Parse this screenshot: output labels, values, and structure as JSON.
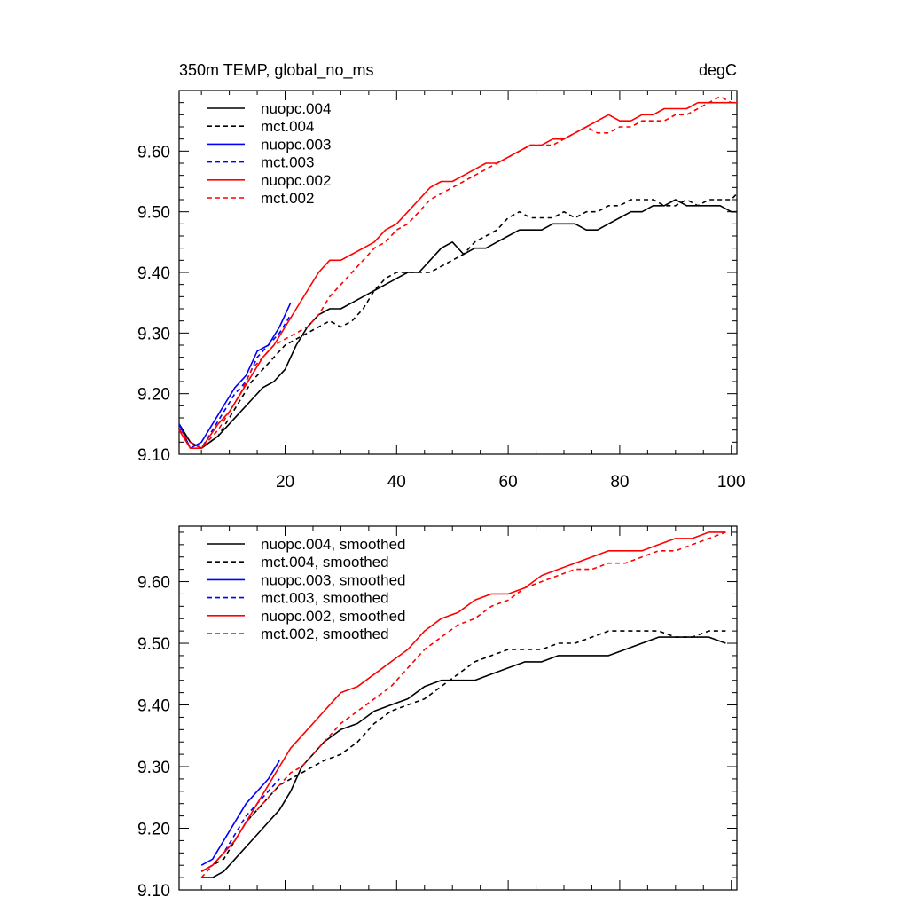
{
  "chart_data": [
    {
      "type": "line",
      "title_left": "350m TEMP, global_no_ms",
      "title_right": "degC",
      "xlim": [
        1,
        101
      ],
      "ylim": [
        9.1,
        9.7
      ],
      "xticks": [
        20,
        40,
        60,
        80,
        100
      ],
      "xtick_labels": [
        "20",
        "40",
        "60",
        "80",
        "100"
      ],
      "yticks": [
        9.1,
        9.2,
        9.3,
        9.4,
        9.5,
        9.6
      ],
      "ytick_labels": [
        "9.10",
        "9.20",
        "9.30",
        "9.40",
        "9.50",
        "9.60"
      ],
      "legend_position": "top-left",
      "series": [
        {
          "name": "nuopc.004",
          "color": "#000000",
          "dash": "solid",
          "x": [
            1,
            3,
            5,
            8,
            10,
            12,
            14,
            16,
            18,
            20,
            22,
            24,
            26,
            28,
            30,
            32,
            34,
            36,
            38,
            40,
            42,
            44,
            46,
            48,
            50,
            52,
            54,
            56,
            58,
            60,
            62,
            64,
            66,
            68,
            70,
            72,
            74,
            76,
            78,
            80,
            82,
            84,
            86,
            88,
            90,
            92,
            94,
            96,
            98,
            100,
            101
          ],
          "y": [
            9.15,
            9.12,
            9.11,
            9.13,
            9.15,
            9.17,
            9.19,
            9.21,
            9.22,
            9.24,
            9.28,
            9.31,
            9.33,
            9.34,
            9.34,
            9.35,
            9.36,
            9.37,
            9.38,
            9.39,
            9.4,
            9.4,
            9.42,
            9.44,
            9.45,
            9.43,
            9.44,
            9.44,
            9.45,
            9.46,
            9.47,
            9.47,
            9.47,
            9.48,
            9.48,
            9.48,
            9.47,
            9.47,
            9.48,
            9.49,
            9.5,
            9.5,
            9.51,
            9.51,
            9.52,
            9.51,
            9.51,
            9.51,
            9.51,
            9.5,
            9.5
          ]
        },
        {
          "name": "mct.004",
          "color": "#000000",
          "dash": "dashed",
          "x": [
            1,
            3,
            5,
            8,
            10,
            12,
            14,
            16,
            18,
            20,
            22,
            24,
            26,
            28,
            30,
            32,
            34,
            36,
            38,
            40,
            42,
            44,
            46,
            48,
            50,
            52,
            54,
            56,
            58,
            60,
            62,
            64,
            66,
            68,
            70,
            72,
            74,
            76,
            78,
            80,
            82,
            84,
            86,
            88,
            90,
            92,
            94,
            96,
            98,
            100,
            101
          ],
          "y": [
            9.14,
            9.12,
            9.11,
            9.13,
            9.16,
            9.19,
            9.22,
            9.24,
            9.26,
            9.28,
            9.29,
            9.3,
            9.31,
            9.32,
            9.31,
            9.32,
            9.34,
            9.37,
            9.39,
            9.4,
            9.4,
            9.4,
            9.4,
            9.41,
            9.42,
            9.43,
            9.45,
            9.46,
            9.47,
            9.49,
            9.5,
            9.49,
            9.49,
            9.49,
            9.5,
            9.49,
            9.5,
            9.5,
            9.51,
            9.51,
            9.52,
            9.52,
            9.52,
            9.51,
            9.51,
            9.52,
            9.51,
            9.52,
            9.52,
            9.52,
            9.53
          ]
        },
        {
          "name": "nuopc.003",
          "color": "#0000ff",
          "dash": "solid",
          "x": [
            1,
            3,
            5,
            7,
            9,
            11,
            13,
            15,
            17,
            19,
            21
          ],
          "y": [
            9.15,
            9.11,
            9.12,
            9.15,
            9.18,
            9.21,
            9.23,
            9.27,
            9.28,
            9.31,
            9.35
          ]
        },
        {
          "name": "mct.003",
          "color": "#0000ff",
          "dash": "dashed",
          "x": [
            1,
            3,
            5,
            7,
            9,
            11,
            13,
            15,
            17,
            19,
            21
          ],
          "y": [
            9.14,
            9.12,
            9.11,
            9.14,
            9.17,
            9.2,
            9.22,
            9.26,
            9.28,
            9.3,
            9.33
          ]
        },
        {
          "name": "nuopc.002",
          "color": "#ff0000",
          "dash": "solid",
          "x": [
            1,
            3,
            5,
            8,
            10,
            12,
            14,
            16,
            18,
            20,
            22,
            24,
            26,
            28,
            30,
            32,
            34,
            36,
            38,
            40,
            42,
            44,
            46,
            48,
            50,
            52,
            54,
            56,
            58,
            60,
            62,
            64,
            66,
            68,
            70,
            72,
            74,
            76,
            78,
            80,
            82,
            84,
            86,
            88,
            90,
            92,
            94,
            96,
            98,
            100,
            101
          ],
          "y": [
            9.14,
            9.11,
            9.11,
            9.15,
            9.17,
            9.2,
            9.23,
            9.26,
            9.28,
            9.31,
            9.34,
            9.37,
            9.4,
            9.42,
            9.42,
            9.43,
            9.44,
            9.45,
            9.47,
            9.48,
            9.5,
            9.52,
            9.54,
            9.55,
            9.55,
            9.56,
            9.57,
            9.58,
            9.58,
            9.59,
            9.6,
            9.61,
            9.61,
            9.62,
            9.62,
            9.63,
            9.64,
            9.65,
            9.66,
            9.65,
            9.65,
            9.66,
            9.66,
            9.67,
            9.67,
            9.67,
            9.68,
            9.68,
            9.68,
            9.68,
            9.68
          ]
        },
        {
          "name": "mct.002",
          "color": "#ff0000",
          "dash": "dashed",
          "x": [
            1,
            3,
            5,
            8,
            10,
            12,
            14,
            16,
            18,
            20,
            22,
            24,
            26,
            28,
            30,
            32,
            34,
            36,
            38,
            40,
            42,
            44,
            46,
            48,
            50,
            52,
            54,
            56,
            58,
            60,
            62,
            64,
            66,
            68,
            70,
            72,
            74,
            76,
            78,
            80,
            82,
            84,
            86,
            88,
            90,
            92,
            94,
            96,
            98,
            100,
            101
          ],
          "y": [
            9.14,
            9.12,
            9.11,
            9.14,
            9.17,
            9.2,
            9.24,
            9.26,
            9.28,
            9.29,
            9.3,
            9.31,
            9.33,
            9.36,
            9.38,
            9.4,
            9.42,
            9.44,
            9.45,
            9.47,
            9.48,
            9.5,
            9.52,
            9.53,
            9.54,
            9.55,
            9.56,
            9.57,
            9.58,
            9.59,
            9.6,
            9.61,
            9.61,
            9.61,
            9.62,
            9.63,
            9.64,
            9.63,
            9.63,
            9.64,
            9.64,
            9.65,
            9.65,
            9.65,
            9.66,
            9.66,
            9.67,
            9.68,
            9.69,
            9.68,
            9.68
          ]
        }
      ]
    },
    {
      "type": "line",
      "title_left": "",
      "title_right": "",
      "xlim": [
        1,
        101
      ],
      "ylim": [
        9.1,
        9.69
      ],
      "xticks": [
        20,
        40,
        60,
        80,
        100
      ],
      "xtick_labels": [],
      "yticks": [
        9.1,
        9.2,
        9.3,
        9.4,
        9.5,
        9.6
      ],
      "ytick_labels": [
        "9.10",
        "9.20",
        "9.30",
        "9.40",
        "9.50",
        "9.60"
      ],
      "legend_position": "top-left",
      "series": [
        {
          "name": "nuopc.004, smoothed",
          "color": "#000000",
          "dash": "solid",
          "x": [
            5,
            7,
            9,
            11,
            13,
            15,
            17,
            19,
            21,
            23,
            25,
            27,
            30,
            33,
            36,
            39,
            42,
            45,
            48,
            51,
            54,
            57,
            60,
            63,
            66,
            69,
            72,
            75,
            78,
            81,
            84,
            87,
            90,
            93,
            96,
            99
          ],
          "y": [
            9.12,
            9.12,
            9.13,
            9.15,
            9.17,
            9.19,
            9.21,
            9.23,
            9.26,
            9.3,
            9.32,
            9.34,
            9.36,
            9.37,
            9.39,
            9.4,
            9.41,
            9.43,
            9.44,
            9.44,
            9.44,
            9.45,
            9.46,
            9.47,
            9.47,
            9.48,
            9.48,
            9.48,
            9.48,
            9.49,
            9.5,
            9.51,
            9.51,
            9.51,
            9.51,
            9.5
          ]
        },
        {
          "name": "mct.004, smoothed",
          "color": "#000000",
          "dash": "dashed",
          "x": [
            5,
            7,
            9,
            11,
            13,
            15,
            17,
            19,
            21,
            23,
            25,
            27,
            30,
            33,
            36,
            39,
            42,
            45,
            48,
            51,
            54,
            57,
            60,
            63,
            66,
            69,
            72,
            75,
            78,
            81,
            84,
            87,
            90,
            93,
            96,
            99
          ],
          "y": [
            9.13,
            9.14,
            9.15,
            9.18,
            9.21,
            9.23,
            9.25,
            9.27,
            9.28,
            9.29,
            9.3,
            9.31,
            9.32,
            9.34,
            9.37,
            9.39,
            9.4,
            9.41,
            9.43,
            9.45,
            9.47,
            9.48,
            9.49,
            9.49,
            9.49,
            9.5,
            9.5,
            9.51,
            9.52,
            9.52,
            9.52,
            9.52,
            9.51,
            9.51,
            9.52,
            9.52
          ]
        },
        {
          "name": "nuopc.003, smoothed",
          "color": "#0000ff",
          "dash": "solid",
          "x": [
            5,
            7,
            9,
            11,
            13,
            15,
            17,
            19
          ],
          "y": [
            9.14,
            9.15,
            9.18,
            9.21,
            9.24,
            9.26,
            9.28,
            9.31
          ]
        },
        {
          "name": "mct.003, smoothed",
          "color": "#0000ff",
          "dash": "dashed",
          "x": [
            5,
            7,
            9,
            11,
            13,
            15,
            17,
            19
          ],
          "y": [
            9.13,
            9.14,
            9.16,
            9.19,
            9.22,
            9.24,
            9.26,
            9.28
          ]
        },
        {
          "name": "nuopc.002, smoothed",
          "color": "#ff0000",
          "dash": "solid",
          "x": [
            5,
            7,
            9,
            11,
            13,
            15,
            17,
            19,
            21,
            23,
            25,
            27,
            30,
            33,
            36,
            39,
            42,
            45,
            48,
            51,
            54,
            57,
            60,
            63,
            66,
            69,
            72,
            75,
            78,
            81,
            84,
            87,
            90,
            93,
            96,
            99
          ],
          "y": [
            9.13,
            9.14,
            9.16,
            9.18,
            9.21,
            9.24,
            9.27,
            9.3,
            9.33,
            9.35,
            9.37,
            9.39,
            9.42,
            9.43,
            9.45,
            9.47,
            9.49,
            9.52,
            9.54,
            9.55,
            9.57,
            9.58,
            9.58,
            9.59,
            9.61,
            9.62,
            9.63,
            9.64,
            9.65,
            9.65,
            9.65,
            9.66,
            9.67,
            9.67,
            9.68,
            9.68
          ]
        },
        {
          "name": "mct.002, smoothed",
          "color": "#ff0000",
          "dash": "dashed",
          "x": [
            5,
            7,
            9,
            11,
            13,
            15,
            17,
            19,
            21,
            23,
            25,
            27,
            30,
            33,
            36,
            39,
            42,
            45,
            48,
            51,
            54,
            57,
            60,
            63,
            66,
            69,
            72,
            75,
            78,
            81,
            84,
            87,
            90,
            93,
            96,
            99
          ],
          "y": [
            9.12,
            9.14,
            9.16,
            9.18,
            9.21,
            9.23,
            9.25,
            9.27,
            9.29,
            9.3,
            9.32,
            9.34,
            9.37,
            9.39,
            9.41,
            9.43,
            9.46,
            9.49,
            9.51,
            9.53,
            9.54,
            9.56,
            9.57,
            9.59,
            9.6,
            9.61,
            9.62,
            9.62,
            9.63,
            9.63,
            9.64,
            9.65,
            9.65,
            9.66,
            9.67,
            9.68
          ]
        }
      ]
    }
  ]
}
